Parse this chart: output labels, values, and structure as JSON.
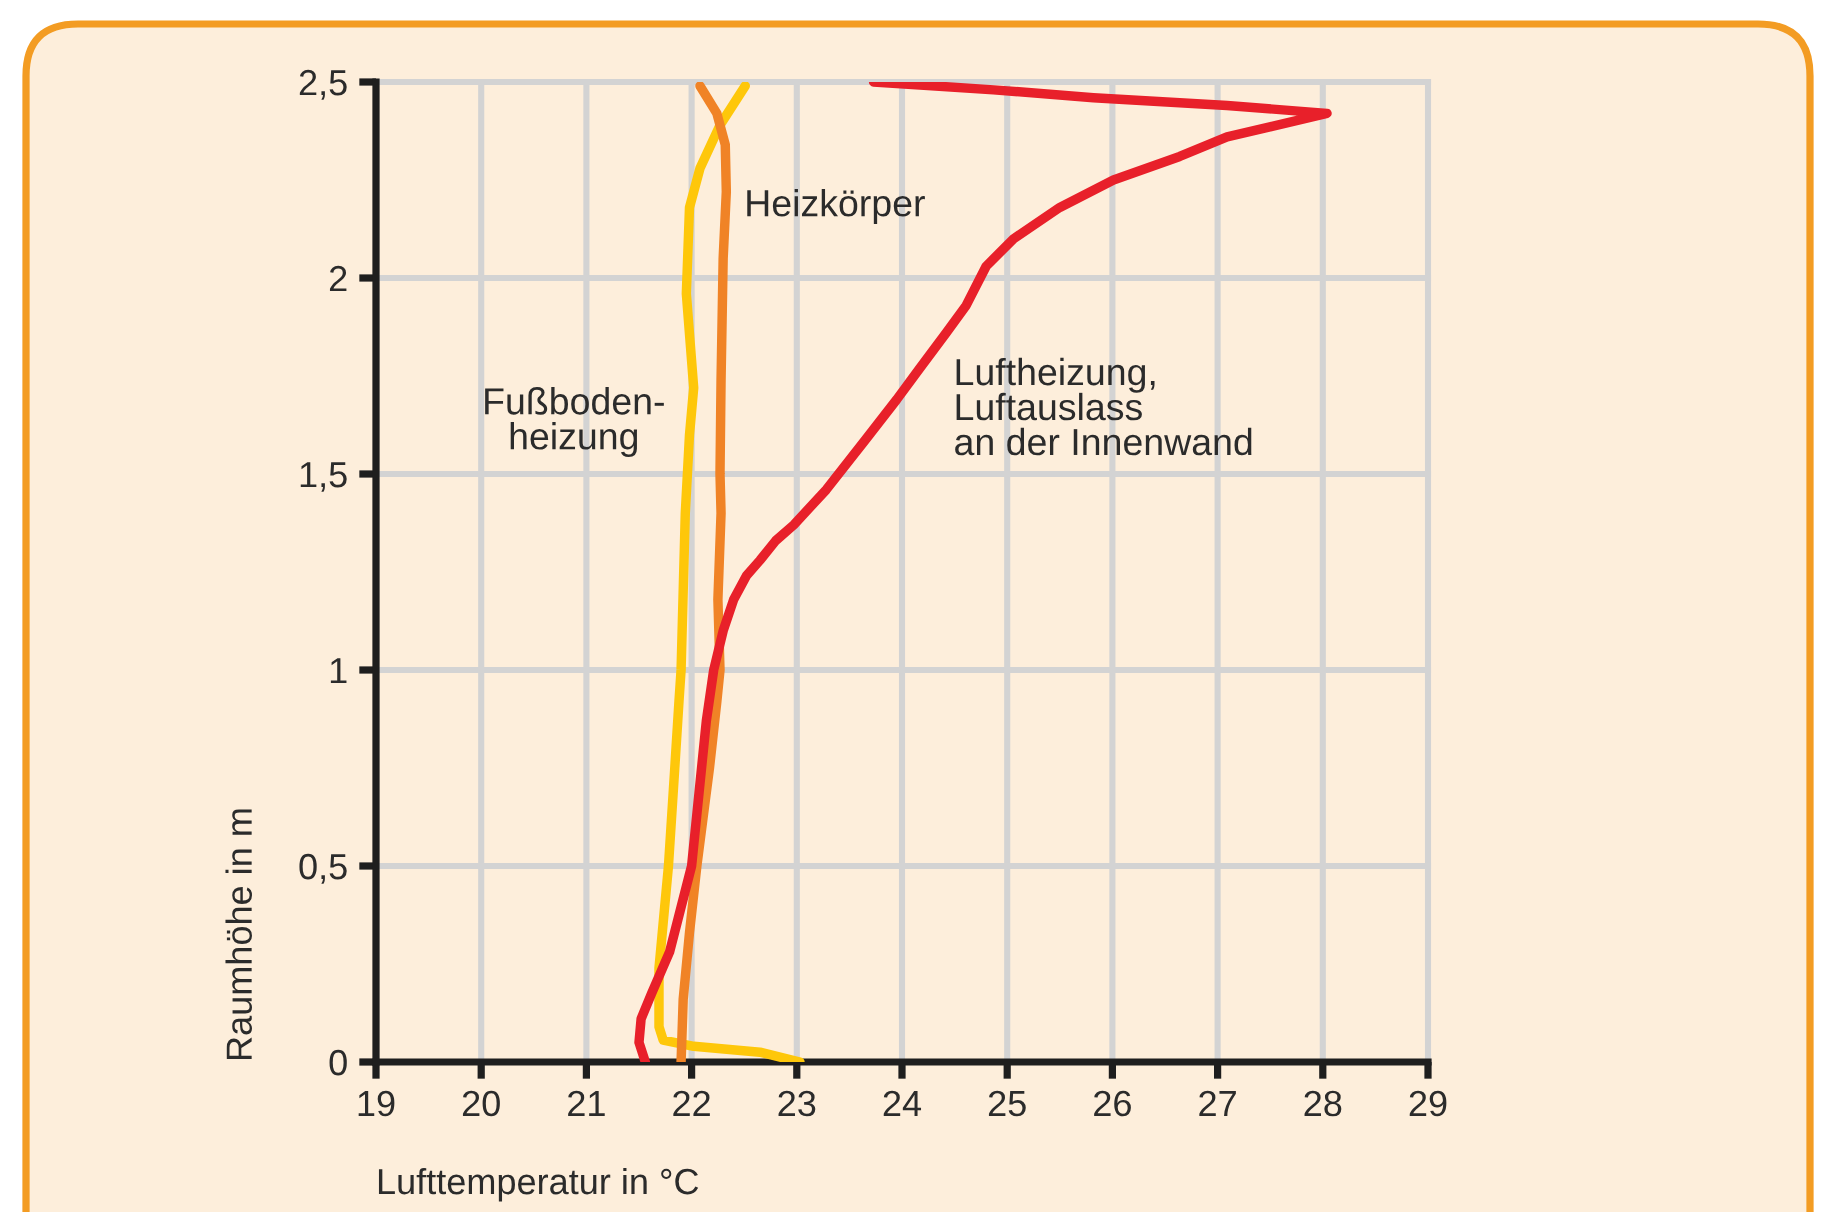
{
  "chart_data": {
    "type": "line",
    "xlabel": "Lufttemperatur in °C",
    "ylabel": "Raumhöhe in m",
    "xlim": [
      19,
      29
    ],
    "ylim": [
      0,
      2.5
    ],
    "xticks": [
      19,
      20,
      21,
      22,
      23,
      24,
      25,
      26,
      27,
      28,
      29
    ],
    "yticks": [
      0,
      {
        "value": 0.5,
        "label": "0,5"
      },
      1,
      {
        "value": 1.5,
        "label": "1,5"
      },
      2,
      {
        "value": 2.5,
        "label": "2,5"
      }
    ],
    "grid": true,
    "series": [
      {
        "name": "Fußboden-\nheizung",
        "color": "#fec70a",
        "x": [
          23.03,
          22.65,
          22.02,
          21.73,
          21.69,
          21.69,
          21.78,
          21.84,
          21.88,
          21.9,
          21.94,
          21.98,
          22.02,
          21.95,
          21.98,
          22.08,
          22.27,
          22.51
        ],
        "values": [
          0,
          0.025,
          0.04,
          0.056,
          0.09,
          0.24,
          0.5,
          0.75,
          0.92,
          1.0,
          1.4,
          1.6,
          1.72,
          1.96,
          2.18,
          2.28,
          2.39,
          2.49
        ]
      },
      {
        "name": "Heizkörper",
        "color": "#f08326",
        "x": [
          21.9,
          21.92,
          21.98,
          22.05,
          22.17,
          22.24,
          22.27,
          22.25,
          22.28,
          22.27,
          22.28,
          22.3,
          22.33,
          22.32,
          22.24,
          22.08
        ],
        "values": [
          0,
          0.16,
          0.33,
          0.5,
          0.75,
          0.92,
          1.0,
          1.18,
          1.4,
          1.5,
          1.74,
          2.05,
          2.22,
          2.34,
          2.42,
          2.49
        ]
      },
      {
        "name": "Luftheizung,\nLuftauslass\nan der Innenwand",
        "color": "#e8202a",
        "x": [
          21.56,
          21.5,
          21.52,
          21.62,
          21.79,
          22.0,
          22.14,
          22.21,
          22.3,
          22.4,
          22.52,
          22.65,
          22.8,
          22.97,
          23.28,
          23.66,
          23.95,
          24.17,
          24.42,
          24.61,
          24.8,
          25.06,
          25.5,
          26.01,
          26.64,
          27.09,
          28.04,
          27.09,
          25.82,
          24.87,
          23.73
        ],
        "values": [
          0,
          0.05,
          0.11,
          0.175,
          0.28,
          0.5,
          0.87,
          1.0,
          1.1,
          1.18,
          1.24,
          1.28,
          1.33,
          1.37,
          1.46,
          1.59,
          1.69,
          1.77,
          1.86,
          1.93,
          2.03,
          2.1,
          2.18,
          2.25,
          2.31,
          2.36,
          2.42,
          2.44,
          2.46,
          2.48,
          2.5
        ]
      }
    ]
  }
}
